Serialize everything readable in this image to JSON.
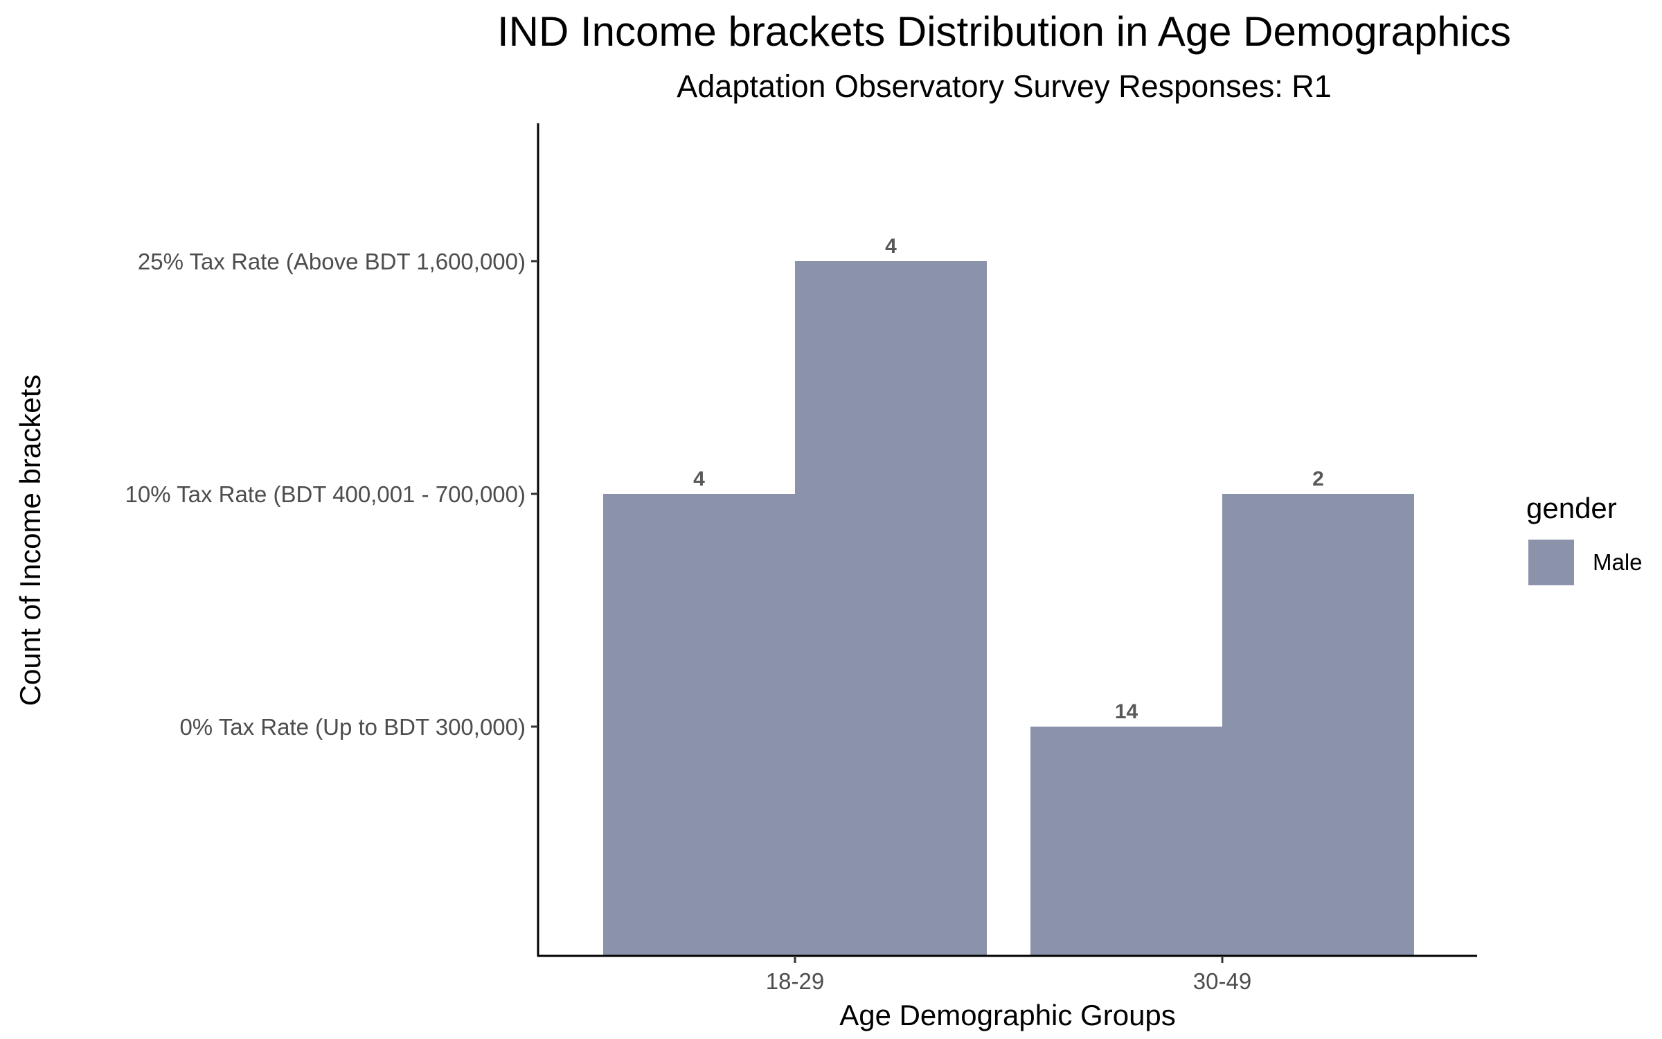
{
  "chart_data": {
    "type": "bar",
    "title": "IND Income brackets Distribution in Age Demographics",
    "subtitle": "Adaptation Observatory Survey Responses: R1",
    "xlabel": "Age Demographic Groups",
    "ylabel": "Count of Income brackets",
    "categories": [
      "18-29",
      "30-49"
    ],
    "y_categories": [
      "0% Tax Rate (Up to BDT 300,000)",
      "10% Tax Rate (BDT 400,001 - 700,000)",
      "25% Tax Rate (Above BDT 1,600,000)"
    ],
    "bars": [
      {
        "category": "18-29",
        "y": "10% Tax Rate (BDT 400,001 - 700,000)",
        "label": "4"
      },
      {
        "category": "18-29",
        "y": "25% Tax Rate (Above BDT 1,600,000)",
        "label": "4"
      },
      {
        "category": "30-49",
        "y": "0% Tax Rate (Up to BDT 300,000)",
        "label": "14"
      },
      {
        "category": "30-49",
        "y": "10% Tax Rate (BDT 400,001 - 700,000)",
        "label": "2"
      }
    ],
    "legend": {
      "title": "gender",
      "items": [
        {
          "name": "Male",
          "color": "#8b93aa"
        }
      ],
      "position": "right"
    },
    "bar_color": "#8b93aa",
    "grid": false
  }
}
